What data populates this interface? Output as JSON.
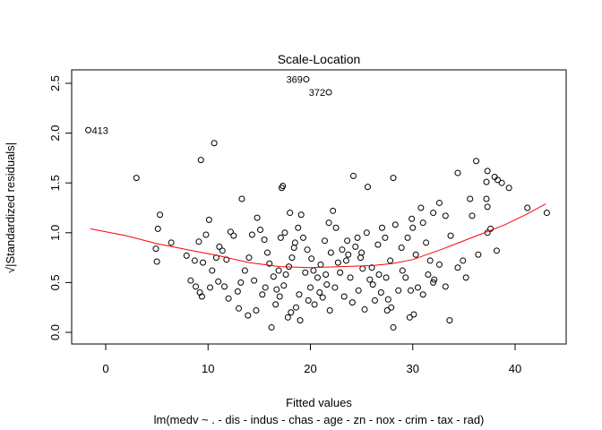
{
  "chart_data": {
    "type": "scatter",
    "title": "Scale-Location",
    "xlabel": "Fitted values",
    "ylabel": "√|Standardized residuals|",
    "subtitle": "lm(medv ~ . - dis - indus - chas - age - zn - nox - crim - tax - rad)",
    "xlim": [
      -1.7,
      43.3
    ],
    "ylim": [
      0.0,
      2.53
    ],
    "x_ticks": [
      0,
      10,
      20,
      30,
      40
    ],
    "y_ticks": [
      0.0,
      0.5,
      1.0,
      1.5,
      2.0,
      2.5
    ],
    "x_tick_labels": [
      "0",
      "10",
      "20",
      "30",
      "40"
    ],
    "y_tick_labels": [
      "0.0",
      "0.5",
      "1.0",
      "1.5",
      "2.0",
      "2.5"
    ],
    "grid": false,
    "colors": {
      "points": "#000000",
      "smoother": "#ff0000"
    },
    "annotations": [
      {
        "label": "413",
        "x": -1.7,
        "y": 2.03
      },
      {
        "label": "369",
        "x": 19.6,
        "y": 2.54
      },
      {
        "label": "372",
        "x": 21.8,
        "y": 2.41
      }
    ],
    "smoother": [
      {
        "x": -1.5,
        "y": 1.04
      },
      {
        "x": 2,
        "y": 0.97
      },
      {
        "x": 5,
        "y": 0.89
      },
      {
        "x": 8,
        "y": 0.83
      },
      {
        "x": 11,
        "y": 0.77
      },
      {
        "x": 14,
        "y": 0.7
      },
      {
        "x": 17,
        "y": 0.66
      },
      {
        "x": 20,
        "y": 0.65
      },
      {
        "x": 23,
        "y": 0.66
      },
      {
        "x": 26,
        "y": 0.67
      },
      {
        "x": 28,
        "y": 0.69
      },
      {
        "x": 30,
        "y": 0.73
      },
      {
        "x": 33,
        "y": 0.84
      },
      {
        "x": 36,
        "y": 0.96
      },
      {
        "x": 39,
        "y": 1.08
      },
      {
        "x": 41,
        "y": 1.18
      },
      {
        "x": 43,
        "y": 1.29
      }
    ],
    "points": [
      [
        -1.7,
        2.03
      ],
      [
        19.6,
        2.54
      ],
      [
        21.8,
        2.41
      ],
      [
        3.0,
        1.55
      ],
      [
        9.3,
        1.73
      ],
      [
        10.6,
        1.9
      ],
      [
        13.3,
        1.34
      ],
      [
        17.2,
        1.45
      ],
      [
        17.3,
        1.47
      ],
      [
        24.2,
        1.57
      ],
      [
        25.6,
        1.46
      ],
      [
        28.1,
        1.55
      ],
      [
        34.4,
        1.6
      ],
      [
        36.2,
        1.72
      ],
      [
        37.3,
        1.62
      ],
      [
        37.2,
        1.51
      ],
      [
        38.0,
        1.56
      ],
      [
        38.7,
        1.5
      ],
      [
        39.4,
        1.45
      ],
      [
        38.3,
        1.53
      ],
      [
        37.2,
        1.34
      ],
      [
        35.6,
        1.34
      ],
      [
        37.3,
        1.26
      ],
      [
        35.8,
        1.17
      ],
      [
        41.2,
        1.25
      ],
      [
        43.1,
        1.2
      ],
      [
        37.6,
        1.04
      ],
      [
        37.3,
        1.0
      ],
      [
        38.2,
        0.82
      ],
      [
        36.4,
        0.78
      ],
      [
        33.7,
        0.97
      ],
      [
        33.2,
        1.17
      ],
      [
        32.6,
        1.3
      ],
      [
        32.0,
        1.2
      ],
      [
        30.8,
        1.25
      ],
      [
        29.9,
        1.14
      ],
      [
        31.3,
        0.9
      ],
      [
        33.6,
        0.12
      ],
      [
        35.2,
        0.55
      ],
      [
        34.9,
        0.72
      ],
      [
        34.4,
        0.65
      ],
      [
        32.1,
        0.53
      ],
      [
        33.2,
        0.46
      ],
      [
        32.0,
        0.5
      ],
      [
        31.0,
        0.38
      ],
      [
        29.7,
        0.15
      ],
      [
        30.1,
        0.18
      ],
      [
        27.9,
        0.25
      ],
      [
        27.5,
        0.22
      ],
      [
        28.1,
        0.05
      ],
      [
        27.4,
        0.55
      ],
      [
        26.1,
        0.48
      ],
      [
        25.8,
        0.53
      ],
      [
        25.1,
        0.64
      ],
      [
        24.9,
        0.75
      ],
      [
        24.4,
        0.86
      ],
      [
        23.7,
        0.78
      ],
      [
        23.6,
        0.92
      ],
      [
        23.1,
        0.83
      ],
      [
        22.7,
        0.7
      ],
      [
        22.5,
        1.05
      ],
      [
        22.2,
        1.22
      ],
      [
        21.8,
        1.1
      ],
      [
        21.4,
        0.92
      ],
      [
        21.0,
        0.68
      ],
      [
        20.7,
        0.55
      ],
      [
        20.3,
        0.62
      ],
      [
        20.1,
        0.74
      ],
      [
        19.7,
        0.83
      ],
      [
        19.3,
        0.95
      ],
      [
        19.1,
        1.18
      ],
      [
        18.8,
        1.05
      ],
      [
        18.5,
        0.9
      ],
      [
        18.2,
        0.75
      ],
      [
        17.9,
        0.66
      ],
      [
        17.6,
        0.58
      ],
      [
        17.4,
        0.47
      ],
      [
        17.0,
        0.36
      ],
      [
        16.7,
        0.43
      ],
      [
        16.4,
        0.56
      ],
      [
        16.0,
        0.69
      ],
      [
        15.8,
        0.8
      ],
      [
        15.5,
        0.93
      ],
      [
        15.1,
        1.03
      ],
      [
        14.8,
        1.15
      ],
      [
        14.3,
        0.98
      ],
      [
        14.0,
        0.75
      ],
      [
        13.6,
        0.62
      ],
      [
        13.2,
        0.5
      ],
      [
        12.9,
        0.41
      ],
      [
        12.5,
        0.97
      ],
      [
        12.2,
        1.01
      ],
      [
        11.8,
        0.73
      ],
      [
        11.4,
        0.82
      ],
      [
        11.1,
        0.86
      ],
      [
        10.8,
        0.75
      ],
      [
        10.4,
        0.62
      ],
      [
        10.1,
        1.13
      ],
      [
        9.8,
        0.98
      ],
      [
        9.5,
        0.7
      ],
      [
        9.1,
        0.91
      ],
      [
        8.7,
        0.72
      ],
      [
        8.3,
        0.52
      ],
      [
        7.9,
        0.77
      ],
      [
        6.4,
        0.9
      ],
      [
        5.3,
        1.18
      ],
      [
        5.1,
        1.04
      ],
      [
        4.9,
        0.84
      ],
      [
        5.0,
        0.71
      ],
      [
        8.8,
        0.46
      ],
      [
        9.2,
        0.4
      ],
      [
        9.4,
        0.36
      ],
      [
        10.2,
        0.45
      ],
      [
        11.0,
        0.51
      ],
      [
        11.6,
        0.46
      ],
      [
        12.0,
        0.34
      ],
      [
        13.0,
        0.24
      ],
      [
        13.9,
        0.17
      ],
      [
        14.7,
        0.22
      ],
      [
        15.3,
        0.38
      ],
      [
        16.2,
        0.05
      ],
      [
        16.6,
        0.28
      ],
      [
        17.8,
        0.15
      ],
      [
        18.1,
        0.2
      ],
      [
        18.6,
        0.25
      ],
      [
        19.0,
        0.12
      ],
      [
        19.8,
        0.32
      ],
      [
        20.4,
        0.28
      ],
      [
        21.2,
        0.35
      ],
      [
        21.9,
        0.22
      ],
      [
        22.4,
        0.45
      ],
      [
        23.3,
        0.36
      ],
      [
        24.1,
        0.3
      ],
      [
        24.7,
        0.42
      ],
      [
        25.3,
        0.23
      ],
      [
        26.3,
        0.32
      ],
      [
        26.9,
        0.4
      ],
      [
        27.6,
        0.33
      ],
      [
        28.6,
        0.42
      ],
      [
        29.3,
        0.55
      ],
      [
        30.5,
        0.45
      ],
      [
        31.5,
        0.58
      ],
      [
        32.6,
        0.68
      ],
      [
        17.1,
        0.95
      ],
      [
        17.5,
        1.0
      ],
      [
        18.0,
        1.2
      ],
      [
        18.4,
        0.85
      ],
      [
        19.5,
        0.6
      ],
      [
        20.0,
        0.45
      ],
      [
        20.9,
        0.4
      ],
      [
        21.5,
        0.58
      ],
      [
        22.0,
        0.8
      ],
      [
        22.9,
        0.6
      ],
      [
        23.9,
        0.55
      ],
      [
        24.6,
        0.95
      ],
      [
        25.0,
        0.8
      ],
      [
        25.5,
        1.0
      ],
      [
        26.0,
        0.65
      ],
      [
        26.6,
        0.88
      ],
      [
        27.0,
        1.05
      ],
      [
        27.3,
        0.95
      ],
      [
        27.8,
        0.72
      ],
      [
        28.3,
        1.08
      ],
      [
        28.9,
        0.85
      ],
      [
        29.0,
        0.62
      ],
      [
        29.5,
        0.95
      ],
      [
        30.0,
        1.05
      ],
      [
        30.3,
        0.78
      ],
      [
        31.0,
        1.1
      ],
      [
        31.7,
        0.72
      ],
      [
        14.5,
        0.52
      ],
      [
        15.6,
        0.45
      ],
      [
        16.9,
        0.62
      ],
      [
        18.9,
        0.38
      ],
      [
        21.6,
        0.48
      ],
      [
        23.5,
        0.72
      ],
      [
        26.7,
        0.58
      ],
      [
        29.8,
        0.42
      ]
    ]
  }
}
